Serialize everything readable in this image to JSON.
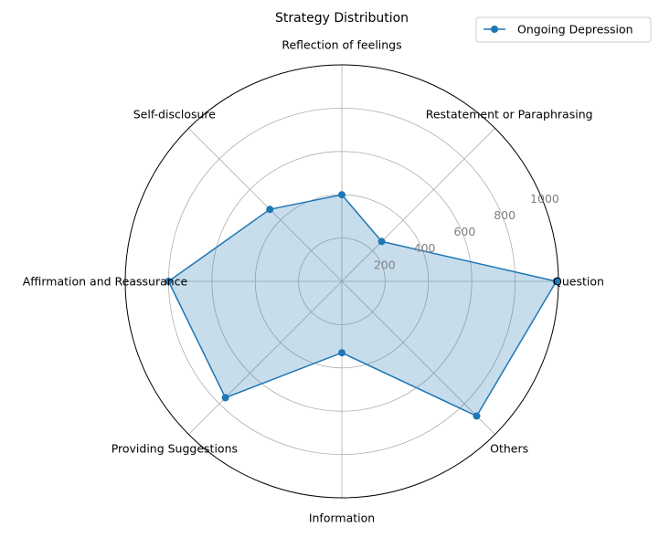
{
  "chart_data": {
    "type": "radar",
    "title": "Strategy Distribution",
    "categories": [
      "Question",
      "Restatement or Paraphrasing",
      "Reflection of feelings",
      "Self-disclosure",
      "Affirmation and Reassurance",
      "Providing Suggestions",
      "Information",
      "Others"
    ],
    "series": [
      {
        "name": "Ongoing Depression",
        "values": [
          990,
          260,
          400,
          470,
          800,
          760,
          330,
          880
        ],
        "color": "#1f77b4"
      }
    ],
    "rlim": [
      0,
      1000
    ],
    "rticks": [
      200,
      400,
      600,
      800,
      1000
    ],
    "grid": true,
    "legend_position": "top-right"
  }
}
